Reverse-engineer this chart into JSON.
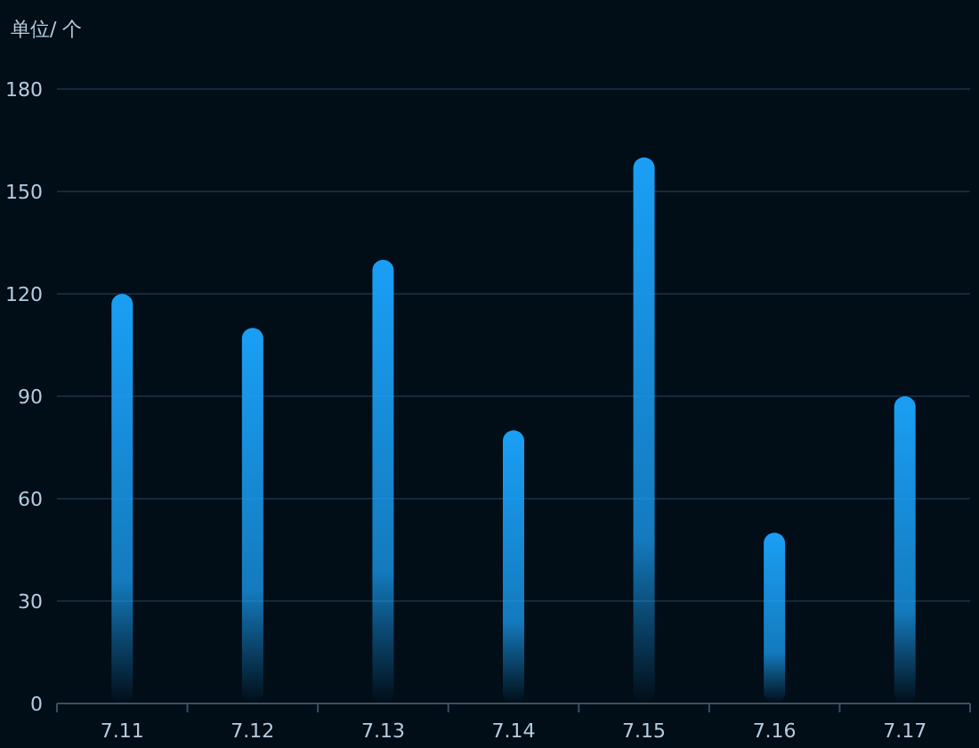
{
  "chart_data": {
    "type": "bar",
    "ylabel": "单位/ 个",
    "categories": [
      "7.11",
      "7.12",
      "7.13",
      "7.14",
      "7.15",
      "7.16",
      "7.17"
    ],
    "values": [
      120,
      110,
      130,
      80,
      160,
      50,
      90
    ],
    "color": "#1a9ff5",
    "ylim": [
      0,
      180
    ],
    "yticks": [
      0,
      30,
      60,
      90,
      120,
      150,
      180
    ],
    "grid": "y"
  }
}
